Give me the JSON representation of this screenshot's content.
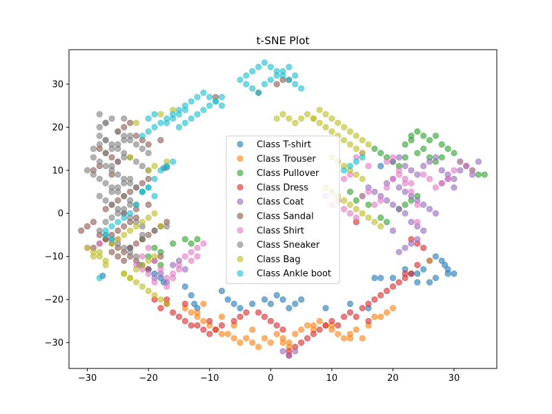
{
  "chart_data": {
    "type": "scatter",
    "title": "t-SNE Plot",
    "xlabel": "",
    "ylabel": "",
    "xlim": [
      -33,
      37
    ],
    "ylim": [
      -36,
      38
    ],
    "xticks": [
      -30,
      -20,
      -10,
      0,
      10,
      20,
      30
    ],
    "yticks": [
      -30,
      -20,
      -10,
      0,
      10,
      20,
      30
    ],
    "grid": false,
    "legend_position": "center",
    "marker_alpha": 0.6,
    "series": [
      {
        "name": "Class T-shirt",
        "color": "#1f77b4",
        "x": [
          -27.5,
          -23,
          -21.5,
          -20,
          -19,
          -18,
          -17.5,
          -14,
          -13,
          -12.5,
          -12,
          -8,
          -7,
          -6,
          -5,
          -3,
          -1,
          0,
          1,
          2,
          3,
          4,
          5,
          9,
          13,
          16,
          17,
          18,
          20,
          22,
          23,
          24,
          25,
          26,
          27,
          28,
          28.5,
          29,
          27,
          26,
          24,
          -17.5,
          -17,
          29,
          30,
          18
        ],
        "y": [
          -14.5,
          -8,
          -12,
          -13,
          -14,
          -15,
          -16,
          -17,
          -19,
          -21,
          -22,
          -18,
          -20,
          -21,
          -22,
          -21,
          -20,
          -21,
          -19,
          -20,
          -22,
          -21,
          -20,
          -22,
          -21,
          -22,
          -15,
          11,
          -15,
          -13,
          -14,
          -16,
          -13,
          -11,
          -10,
          -11,
          -12,
          -13,
          -15,
          -16,
          -14,
          10.5,
          10.7,
          -14,
          -14,
          -15
        ]
      },
      {
        "name": "Class Trouser",
        "color": "#ff7f0e",
        "x": [
          -14,
          -13,
          -12,
          -11,
          -10,
          -9,
          -8,
          -7,
          -6,
          -5,
          -4,
          -3,
          -2,
          -1,
          0,
          1,
          2,
          3,
          4,
          5,
          6,
          7,
          8,
          9,
          10,
          11,
          12,
          13,
          14,
          15,
          16,
          17,
          -12,
          -11,
          -8,
          -6,
          -3,
          2,
          3,
          7,
          10,
          13,
          18,
          19,
          20,
          26
        ],
        "y": [
          -22,
          -23,
          -24,
          -25,
          -26,
          -27,
          -28,
          -28,
          -29,
          -30,
          -29,
          -30,
          -31,
          -29,
          -30,
          -28,
          -29,
          -30,
          -28,
          -27,
          -26,
          -26,
          -25,
          -26,
          -27,
          -28,
          -29,
          -28,
          -27,
          -29,
          -26,
          -24,
          -23,
          -21,
          -24,
          -26,
          -27,
          -30,
          -31,
          -27,
          -26,
          -29,
          -24,
          -23,
          -22,
          -11
        ]
      },
      {
        "name": "Class Pullover",
        "color": "#2ca02c",
        "x": [
          -21,
          -19,
          -18,
          -16,
          -14,
          -13,
          -12,
          -20,
          -18,
          13,
          14,
          15,
          16,
          17,
          18,
          19,
          20,
          21,
          22,
          23,
          24,
          25,
          26,
          27,
          28,
          29,
          30,
          31,
          32,
          33,
          34,
          35,
          22,
          23,
          24,
          25,
          26,
          27,
          28,
          18,
          19,
          21,
          22,
          23,
          24
        ],
        "y": [
          -6,
          -8,
          -9,
          -7,
          -6,
          -7,
          -6,
          -10,
          -12,
          5,
          3,
          4,
          2,
          15,
          14,
          13,
          12,
          11,
          13,
          17,
          19,
          18,
          17,
          18,
          16,
          15,
          14,
          12,
          11,
          10,
          9,
          9,
          16,
          18,
          14,
          15,
          13,
          12,
          13,
          -1,
          -2,
          1,
          2,
          3,
          4
        ]
      },
      {
        "name": "Class Dress",
        "color": "#d62728",
        "x": [
          -19,
          -18,
          -17,
          -16,
          -15,
          -14,
          -13,
          -12,
          -11,
          -10,
          -9,
          -8,
          -6,
          -5,
          -4,
          -2,
          -1,
          0,
          1,
          2,
          3,
          4,
          5,
          6,
          7,
          8,
          9,
          10,
          11,
          12,
          13,
          14,
          15,
          16,
          17,
          18,
          19,
          20,
          21,
          22,
          23,
          24,
          -17,
          -14,
          -10,
          3,
          14,
          16,
          22,
          23,
          24,
          25
        ],
        "y": [
          -20,
          -22,
          -21,
          -23,
          -24,
          -25,
          -26,
          -26,
          -27,
          -28,
          -27,
          -26,
          -25,
          -24,
          -23,
          -23,
          -24,
          -25,
          -26,
          -27,
          -32,
          -31,
          -30,
          -29,
          -28,
          -27,
          -26,
          -25,
          -26,
          -24,
          -23,
          -24,
          -22,
          -21,
          -20,
          -19,
          -18,
          -17,
          -16,
          -15,
          -14,
          -12,
          -20,
          -21,
          -25,
          -33,
          -2,
          -25,
          -14,
          -6,
          -7,
          -8
        ]
      },
      {
        "name": "Class Coat",
        "color": "#9467bd",
        "x": [
          -20,
          -19,
          -18,
          -17,
          -16,
          -15,
          -14,
          20,
          21,
          22,
          23,
          24,
          25,
          26,
          27,
          28,
          29,
          30,
          31,
          32,
          33,
          34,
          19,
          20,
          21,
          22,
          23,
          24,
          25,
          26,
          27,
          28,
          29,
          30,
          16,
          17,
          18,
          19,
          20,
          21,
          22,
          23,
          24,
          25,
          24,
          23,
          22,
          21,
          20,
          2,
          3,
          4
        ],
        "y": [
          -13,
          -15,
          -14,
          -16,
          -12,
          -11,
          -13,
          12,
          13,
          11,
          10,
          9,
          11,
          12,
          13,
          10,
          9,
          8,
          10,
          11,
          9,
          12,
          7,
          8,
          6,
          5,
          4,
          3,
          2,
          1,
          0,
          7,
          8,
          6,
          6,
          5,
          4,
          3,
          2,
          1,
          0,
          -2,
          -3,
          -4,
          -6,
          -7,
          -8,
          -9,
          -4,
          -32,
          -33,
          -32
        ]
      },
      {
        "name": "Class Sandal",
        "color": "#8c564b",
        "x": [
          -31,
          -30,
          -29,
          -28,
          -27,
          -26,
          -25,
          -24,
          -23,
          -22,
          -21,
          -20,
          -19,
          -18,
          -29,
          -28,
          -27,
          -26,
          -25,
          -24,
          -23,
          -22,
          -27,
          -26,
          -25,
          -24,
          -23,
          -22,
          -21,
          -20,
          -26,
          -25,
          -24,
          -23,
          -22,
          -21,
          -20,
          -19,
          -18,
          -17,
          -25,
          -24,
          -23,
          -22,
          -21,
          -20,
          -28,
          -27,
          -26,
          -25,
          -29,
          -28,
          -26,
          -24,
          -22,
          -20,
          -18,
          -9,
          -2,
          1,
          2,
          3
        ],
        "y": [
          -4,
          -3,
          -2,
          -5,
          -6,
          -7,
          -8,
          -9,
          -10,
          -11,
          -12,
          -13,
          -11,
          -10,
          -8,
          -7,
          -6,
          -5,
          -4,
          -3,
          -2,
          -1,
          1,
          2,
          3,
          4,
          5,
          6,
          7,
          8,
          -9,
          -10,
          -11,
          -8,
          -7,
          -6,
          -5,
          -4,
          -3,
          -2,
          19,
          20,
          21,
          18,
          17,
          16,
          15,
          14,
          13,
          12,
          10,
          11,
          9,
          0,
          1,
          2,
          17,
          27,
          28,
          30,
          31,
          31
        ]
      },
      {
        "name": "Class Shirt",
        "color": "#e377c2",
        "x": [
          -30,
          -28,
          -25,
          -22,
          -21,
          -20,
          -19,
          -18,
          -17,
          -16,
          -15,
          -14,
          -13,
          -12,
          -11,
          -21,
          -20,
          -19,
          -17,
          -16,
          -15,
          -13,
          -12,
          9,
          10,
          11,
          12,
          13,
          14,
          15,
          16,
          17,
          18,
          19,
          20,
          21,
          22,
          23,
          24,
          25,
          26,
          27,
          28,
          29,
          30,
          19,
          20,
          21,
          22,
          23,
          24,
          14,
          15,
          16,
          12,
          13,
          31,
          32,
          33
        ],
        "y": [
          -8,
          -7,
          -6,
          -12,
          -10,
          -8,
          -11,
          -13,
          -15,
          -14,
          -12,
          -10,
          -9,
          -8,
          -7,
          -13,
          -14,
          -16,
          -17,
          -15,
          -13,
          -11,
          -10,
          4,
          2,
          3,
          1,
          0,
          -1,
          4,
          5,
          2,
          3,
          6,
          8,
          10,
          7,
          5,
          2,
          9,
          8,
          6,
          7,
          8,
          10,
          12,
          13,
          9,
          8,
          7,
          -2,
          13,
          14,
          11,
          8,
          9,
          12,
          11,
          10
        ]
      },
      {
        "name": "Class Sneaker",
        "color": "#7f7f7f",
        "x": [
          -28,
          -27,
          -26,
          -25,
          -24,
          -23,
          -22,
          -21,
          -20,
          -28,
          -27,
          -26,
          -25,
          -24,
          -23,
          -22,
          -21,
          -20,
          -29,
          -28,
          -27,
          -26,
          -25,
          -24,
          -23,
          -22,
          -21,
          -29,
          -28,
          -27,
          -26,
          -25,
          -24,
          -23,
          -22,
          -28,
          -27,
          -26,
          -25,
          -24,
          -23,
          -22,
          -21,
          -28,
          -27,
          -26,
          -25,
          -24,
          -23,
          -22,
          -27,
          -26,
          -25,
          -24,
          -23,
          -26,
          -25,
          -24,
          -23,
          -27,
          -26,
          -25,
          -24,
          -23,
          -21,
          -19,
          -17,
          -26,
          -25,
          -24,
          -29,
          -28,
          -27,
          -30,
          -24,
          -28,
          -27
        ],
        "y": [
          20,
          21,
          22,
          19,
          18,
          17,
          16,
          15,
          14,
          18,
          17,
          16,
          15,
          14,
          13,
          12,
          11,
          10,
          13,
          12,
          11,
          10,
          9,
          8,
          7,
          6,
          5,
          9,
          8,
          7,
          6,
          5,
          4,
          3,
          2,
          4,
          3,
          2,
          1,
          0,
          -1,
          -2,
          -3,
          -4,
          -5,
          -6,
          -7,
          -8,
          -9,
          -10,
          -2,
          -1,
          0,
          1,
          2,
          5,
          6,
          7,
          8,
          14,
          15,
          16,
          17,
          18,
          -5,
          -4,
          -3,
          11,
          12,
          13,
          15,
          16,
          17,
          10,
          22,
          23,
          21
        ]
      },
      {
        "name": "Class Bag",
        "color": "#bcbd22",
        "x": [
          -30,
          -29,
          -28,
          -27,
          -26,
          -25,
          -24,
          -23,
          -22,
          -21,
          -20,
          -19,
          -18,
          -29,
          -28,
          -27,
          -24,
          -23,
          -22,
          -21,
          -20,
          -19,
          -18,
          -17,
          -24,
          -23,
          -22,
          -21,
          -20,
          -19,
          1,
          2,
          3,
          4,
          5,
          6,
          7,
          8,
          9,
          10,
          11,
          12,
          13,
          14,
          15,
          16,
          7,
          8,
          9,
          10,
          11,
          12,
          13,
          14,
          15,
          10,
          11,
          12,
          13,
          14,
          15,
          9,
          10,
          11,
          12,
          13,
          14,
          15,
          16,
          17,
          18,
          -19,
          -17,
          -20,
          -23,
          -22,
          -18,
          -16
        ],
        "y": [
          -8,
          -9,
          -10,
          -11,
          -7,
          -6,
          -5,
          -4,
          -3,
          -2,
          -1,
          0,
          -3,
          -10,
          -9,
          -12,
          -14,
          -15,
          -16,
          -17,
          -18,
          -19,
          -20,
          -21,
          -14,
          -15,
          -13,
          -12,
          -11,
          -10,
          22,
          23,
          22,
          21,
          22,
          23,
          22,
          24,
          23,
          22,
          21,
          20,
          19,
          18,
          17,
          16,
          22,
          21,
          20,
          19,
          18,
          17,
          16,
          15,
          14,
          13,
          12,
          11,
          10,
          9,
          8,
          6,
          5,
          4,
          3,
          2,
          1,
          0,
          -1,
          -2,
          -3,
          11,
          12,
          10,
          13,
          21,
          23,
          24
        ]
      },
      {
        "name": "Class Ankle boot",
        "color": "#17becf",
        "x": [
          -28,
          -27,
          -26,
          -25,
          -24,
          -23,
          -22,
          -21,
          -20,
          -19,
          -18,
          -17,
          -16,
          -15,
          -14,
          -13,
          -12,
          -11,
          -10,
          -9,
          -8,
          -18,
          -17,
          -16,
          -15,
          -14,
          -13,
          -12,
          -11,
          -10,
          -9,
          -8,
          -21,
          -20,
          -19,
          -5,
          -4,
          -3,
          -2,
          -1,
          0,
          1,
          2,
          3,
          4,
          5,
          -4,
          -3,
          -2,
          -1,
          0,
          1,
          2,
          3,
          4,
          -27,
          -26,
          -21,
          -20,
          -19,
          -17,
          -16,
          -15,
          -14,
          12,
          13,
          14,
          15,
          -20,
          -19
        ],
        "y": [
          -15,
          -5,
          -3,
          -2,
          -1,
          0,
          2,
          5,
          6,
          8,
          10,
          11,
          12,
          20,
          21,
          22,
          23,
          24,
          25,
          26,
          27,
          21,
          22,
          23,
          24,
          25,
          26,
          27,
          28,
          27,
          26,
          25,
          18,
          19,
          20,
          31,
          32,
          33,
          34,
          35,
          34,
          33,
          32,
          31,
          30,
          29,
          30,
          29,
          28,
          30,
          31,
          32,
          33,
          34,
          32,
          -4,
          -6,
          5,
          6,
          4,
          21,
          22,
          23,
          24,
          10,
          11,
          12,
          13,
          22,
          23
        ]
      }
    ]
  }
}
